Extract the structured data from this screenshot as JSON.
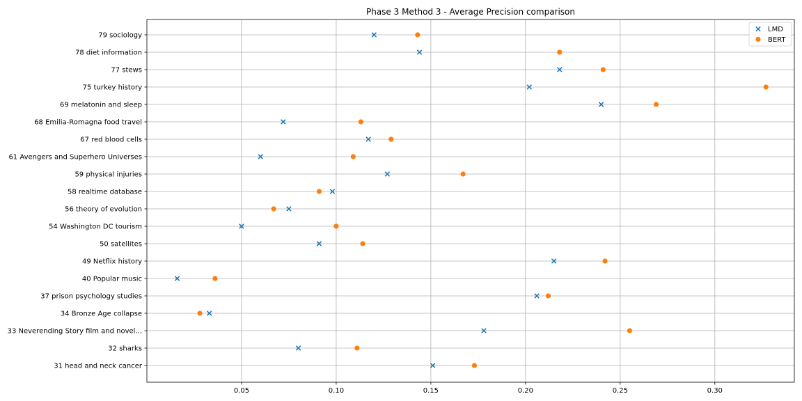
{
  "chart_data": {
    "type": "scatter",
    "title": "Phase 3 Method 3 - Average Precision comparison",
    "xlabel": "",
    "ylabel": "",
    "xlim": [
      0.0,
      0.342
    ],
    "xticks": [
      0.05,
      0.1,
      0.15,
      0.2,
      0.25,
      0.3
    ],
    "xtick_labels": [
      "0.05",
      "0.10",
      "0.15",
      "0.20",
      "0.25",
      "0.30"
    ],
    "grid": true,
    "legend_position": "top-right",
    "categories": [
      "79 sociology",
      "78 diet information",
      "77 stews",
      "75 turkey history",
      "69 melatonin and sleep",
      "68 Emilia-Romagna food travel",
      "67 red blood cells",
      "61 Avengers and Superhero Universes",
      "59 physical injuries",
      "58 realtime database",
      "56 theory of evolution",
      "54 Washington DC tourism",
      "50 satellites",
      "49 Netflix history",
      "40 Popular music",
      "37 prison psychology studies",
      "34 Bronze Age collapse",
      "33 Neverending Story film and novel...",
      "32 sharks",
      "31 head and neck cancer"
    ],
    "series": [
      {
        "name": "LMD",
        "marker": "x",
        "color": "#1f77b4",
        "values": [
          0.12,
          0.144,
          0.218,
          0.202,
          0.24,
          0.072,
          0.117,
          0.06,
          0.127,
          0.098,
          0.075,
          0.05,
          0.091,
          0.215,
          0.016,
          0.206,
          0.033,
          0.178,
          0.08,
          0.151
        ]
      },
      {
        "name": "BERT",
        "marker": "circle",
        "color": "#ff7f0e",
        "values": [
          0.143,
          0.218,
          0.241,
          0.327,
          0.269,
          0.113,
          0.129,
          0.109,
          0.167,
          0.091,
          0.067,
          0.1,
          0.114,
          0.242,
          0.036,
          0.212,
          0.028,
          0.255,
          0.111,
          0.173
        ]
      }
    ]
  }
}
